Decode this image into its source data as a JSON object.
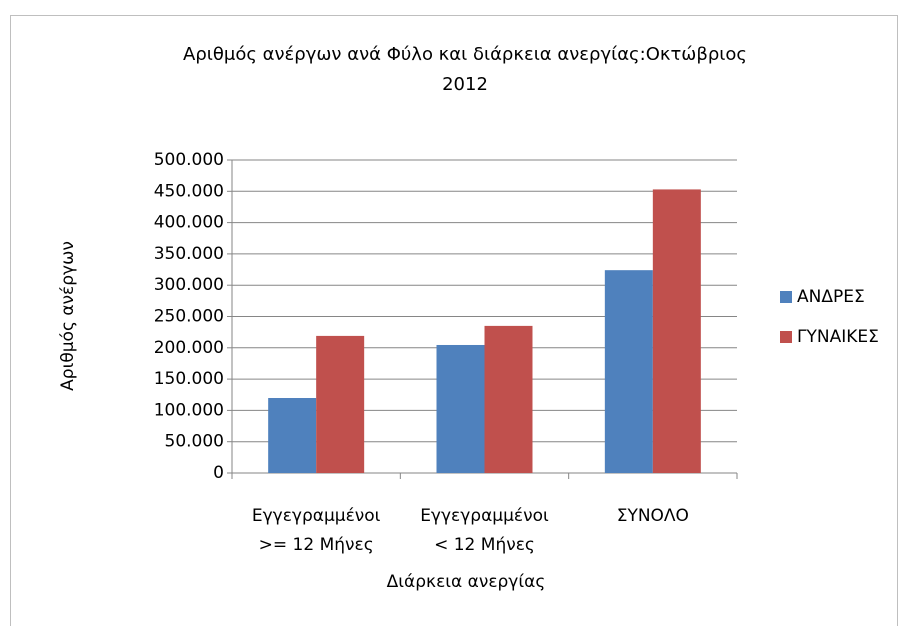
{
  "chart_data": {
    "type": "bar",
    "title": "Αριθμός ανέργων ανά Φύλο και διάρκεια ανεργίας:Οκτώβριος\n2012",
    "y_label": "Αριθμός ανέργων",
    "x_label": "Διάρκεια ανεργίας",
    "categories": [
      "Εγγεγραμμένοι\n>= 12 Μήνες",
      "Εγγεγραμμένοι\n<   12 Μήνες",
      "ΣΥΝΟΛΟ"
    ],
    "series": [
      {
        "name": "ΑΝΔΡΕΣ",
        "color": "#4f81bd",
        "values": [
          119800,
          204500,
          324000
        ]
      },
      {
        "name": "ΓΥΝΑΙΚΕΣ",
        "color": "#c0504d",
        "values": [
          219000,
          235000,
          453000
        ]
      }
    ],
    "ylim": [
      0,
      500000
    ],
    "yticks": [
      0,
      {
        "value": 50000,
        "label": "50.000"
      },
      {
        "value": 100000,
        "label": "100.000"
      },
      {
        "value": 150000,
        "label": "150.000"
      },
      {
        "value": 200000,
        "label": "200.000"
      },
      {
        "value": 250000,
        "label": "250.000"
      },
      {
        "value": 300000,
        "label": "300.000"
      },
      {
        "value": 350000,
        "label": "350.000"
      },
      {
        "value": 400000,
        "label": "400.000"
      },
      {
        "value": 450000,
        "label": "450.000"
      },
      {
        "value": 500000,
        "label": "500.000"
      }
    ],
    "grid": true,
    "legend": "right"
  }
}
